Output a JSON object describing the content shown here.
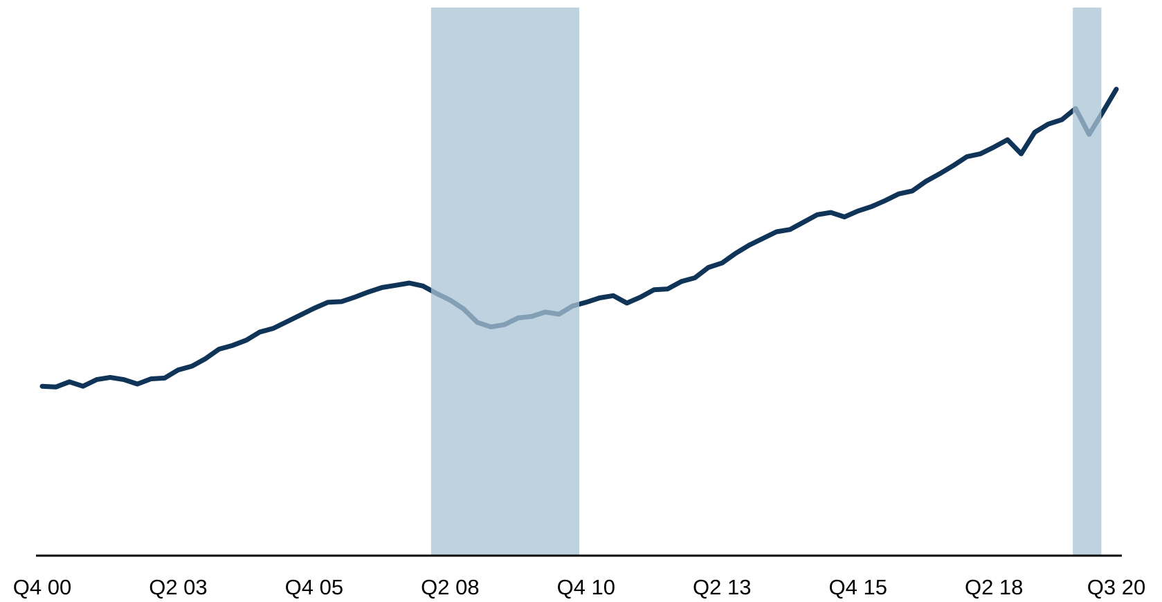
{
  "chart_data": {
    "type": "line",
    "categories": [
      "Q4 00",
      null,
      null,
      null,
      null,
      null,
      null,
      null,
      null,
      null,
      "Q2 03",
      null,
      null,
      null,
      null,
      null,
      null,
      null,
      null,
      null,
      "Q4 05",
      null,
      null,
      null,
      null,
      null,
      null,
      null,
      null,
      null,
      "Q2 08",
      null,
      null,
      null,
      null,
      null,
      null,
      null,
      null,
      null,
      "Q4 10",
      null,
      null,
      null,
      null,
      null,
      null,
      null,
      null,
      null,
      "Q2 13",
      null,
      null,
      null,
      null,
      null,
      null,
      null,
      null,
      null,
      "Q4 15",
      null,
      null,
      null,
      null,
      null,
      null,
      null,
      null,
      null,
      "Q2 18",
      null,
      null,
      null,
      null,
      null,
      null,
      null,
      null,
      "Q3 20"
    ],
    "values": [
      228,
      227,
      234,
      228,
      237,
      240,
      237,
      231,
      238,
      239,
      250,
      255,
      265,
      278,
      283,
      290,
      301,
      306,
      315,
      324,
      333,
      341,
      342,
      348,
      355,
      361,
      364,
      367,
      363,
      353,
      344,
      332,
      314,
      308,
      311,
      320,
      322,
      328,
      325,
      336,
      341,
      347,
      350,
      340,
      348,
      358,
      359,
      369,
      374,
      388,
      394,
      407,
      418,
      427,
      436,
      439,
      449,
      459,
      462,
      456,
      464,
      470,
      478,
      487,
      491,
      504,
      514,
      525,
      537,
      541,
      550,
      560,
      541,
      570,
      581,
      587,
      602,
      567,
      597,
      628
    ],
    "color": "#0f3457",
    "ylim": [
      0,
      735
    ],
    "shaded_ranges": [
      {
        "start": 28.6,
        "end": 39.5
      },
      {
        "start": 75.8,
        "end": 77.9
      }
    ],
    "shade_color": "#a9c3d6"
  }
}
